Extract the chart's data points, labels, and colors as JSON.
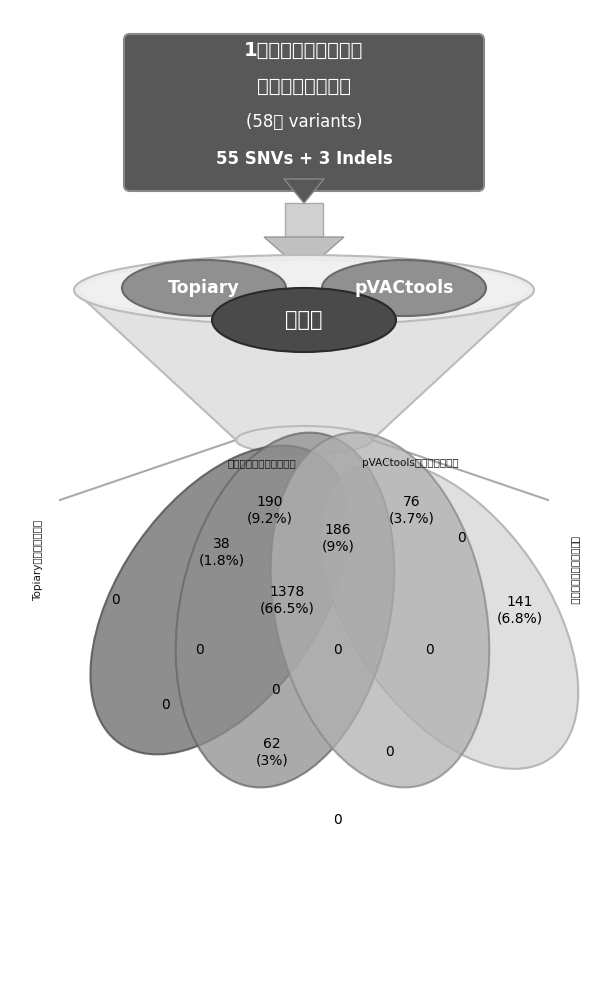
{
  "box_text_line1": "1例非小细胞肺癌样本",
  "box_text_line2": "的体细胞突变结果",
  "box_text_line3": "(58个 variants)",
  "box_text_line4": "55 SNVs + 3 Indels",
  "topiary_label": "Topiary",
  "pvactools_label": "pVACtools",
  "invention_label": "本发明",
  "venn_label1": "本发明生成的真新生肽段",
  "venn_label2": "pVACtools生成的新生肽段",
  "venn_label3": "Topiary生成的新生肽段",
  "venn_label4": "本发明生成的假新生肽段",
  "box_color": "#585858",
  "box_text_color": "#ffffff",
  "oval_light_color": "#9a9a9a",
  "oval_dark_color": "#4a4a4a",
  "oval_text_color": "#ffffff",
  "background_color": "#ffffff"
}
